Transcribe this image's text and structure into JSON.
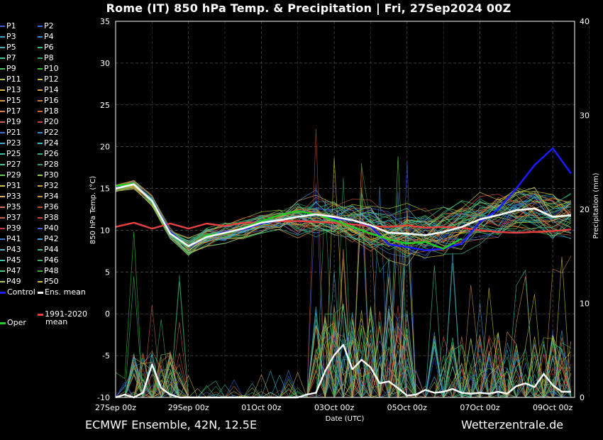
{
  "title": "Rome  (IT)  850 hPa Temp. & Precipitation | Fri, 27Sep2024 00Z",
  "footer": {
    "left": "ECMWF Ensemble, 42N, 12.5E",
    "right": "Wetterzentrale.de"
  },
  "legend": {
    "members": [
      "P1",
      "P2",
      "P3",
      "P4",
      "P5",
      "P6",
      "P7",
      "P8",
      "P9",
      "P10",
      "P11",
      "P12",
      "P13",
      "P14",
      "P15",
      "P16",
      "P17",
      "P18",
      "P19",
      "P20",
      "P21",
      "P22",
      "P23",
      "P24",
      "P25",
      "P26",
      "P27",
      "P28",
      "P29",
      "P30",
      "P31",
      "P32",
      "P33",
      "P34",
      "P35",
      "P36",
      "P37",
      "P38",
      "P39",
      "P40",
      "P41",
      "P42",
      "P43",
      "P44",
      "P45",
      "P46",
      "P47",
      "P48",
      "P49",
      "P50"
    ],
    "member_colors": [
      "#3b5bdb",
      "#2f6ee0",
      "#3aa0c8",
      "#2a8fd8",
      "#37b3b3",
      "#30c07a",
      "#3ec4a2",
      "#28a860",
      "#44c25a",
      "#2fbf2f",
      "#9cc93a",
      "#c9c23a",
      "#d6b84a",
      "#d7a040",
      "#d7944a",
      "#c97a3a",
      "#d9803a",
      "#c76a30",
      "#d06040",
      "#c04040",
      "#3a6ec8",
      "#3a8ad0",
      "#4aa0d8",
      "#3ab8c8",
      "#3ac0a0",
      "#30b080",
      "#3ac890",
      "#2aa070",
      "#60c850",
      "#a0c840",
      "#c8c040",
      "#d0a840",
      "#d8b050",
      "#c89040",
      "#d07040",
      "#b85030",
      "#c86050",
      "#d84040",
      "#c83838",
      "#4060d0",
      "#3a7ad0",
      "#3aa0e0",
      "#50b0c0",
      "#3ab890",
      "#40c0a8",
      "#38b070",
      "#50c870",
      "#40b040",
      "#a8c848",
      "#d0c040"
    ],
    "control": "Control",
    "ens_mean": "Ens. mean",
    "clim_line1": "1991-2020",
    "clim_line2": "mean",
    "oper": "Oper",
    "colors": {
      "control": "#1a1aff",
      "ens_mean": "#ffffff",
      "clim": "#e84040",
      "oper": "#22cc22"
    }
  },
  "chart_data": {
    "type": "line",
    "x_label": "Date (UTC)",
    "y_label_left": "850 hPa Temp. (°C)",
    "y_label_right": "Precipitation (mm)",
    "x_ticks": [
      "27Sep 00z",
      "29Sep 00z",
      "01Oct 00z",
      "03Oct 00z",
      "05Oct 00z",
      "07Oct 00z",
      "09Oct 00z"
    ],
    "x_range_days": [
      0,
      12.6
    ],
    "y_left_range": [
      -10,
      35
    ],
    "y_left_ticks": [
      -10,
      -5,
      0,
      5,
      10,
      15,
      20,
      25,
      30,
      35
    ],
    "y_right_range": [
      0,
      40
    ],
    "y_right_ticks": [
      0,
      10,
      20,
      30,
      40
    ],
    "grid": true,
    "legend_placement": "left, outside",
    "series": [
      {
        "name": "Control",
        "axis": "left",
        "color": "#1a1aff",
        "x": [
          0,
          0.5,
          1,
          1.5,
          2,
          2.5,
          3,
          3.5,
          4,
          4.5,
          5,
          5.5,
          6,
          6.5,
          7,
          7.5,
          8,
          8.5,
          9,
          9.5,
          10,
          10.5,
          11,
          11.5,
          12,
          12.5
        ],
        "y": [
          15.2,
          15.6,
          13.5,
          9.8,
          8.0,
          9.2,
          9.8,
          10.1,
          10.8,
          11.2,
          11.6,
          11.9,
          11.4,
          11.2,
          10.5,
          8.3,
          8.0,
          7.6,
          7.8,
          8.4,
          11.0,
          12.5,
          15.0,
          17.8,
          19.8,
          16.8
        ]
      },
      {
        "name": "Ens. mean",
        "axis": "left",
        "color": "#ffffff",
        "x": [
          0,
          0.5,
          1,
          1.5,
          2,
          2.5,
          3,
          3.5,
          4,
          4.5,
          5,
          5.5,
          6,
          6.5,
          7,
          7.5,
          8,
          8.5,
          9,
          9.5,
          10,
          10.5,
          11,
          11.5,
          12,
          12.5
        ],
        "y": [
          15.0,
          15.5,
          13.5,
          9.6,
          8.1,
          9.2,
          9.7,
          10.2,
          10.9,
          11.2,
          11.6,
          11.9,
          11.6,
          11.2,
          10.6,
          9.7,
          9.6,
          9.4,
          9.8,
          10.4,
          11.3,
          11.8,
          12.4,
          12.6,
          11.6,
          11.8
        ]
      },
      {
        "name": "Oper",
        "axis": "left",
        "color": "#22cc22",
        "x": [
          0,
          0.5,
          1,
          1.5,
          2,
          2.5,
          3,
          3.5,
          4,
          4.5,
          5,
          5.5,
          6,
          6.5,
          7,
          7.5,
          8,
          8.5,
          9,
          9.5
        ],
        "y": [
          15.3,
          15.6,
          13.4,
          9.5,
          8.0,
          9.4,
          9.6,
          10.3,
          11.1,
          11.8,
          12.3,
          11.9,
          11.2,
          10.4,
          9.6,
          8.9,
          8.4,
          8.6,
          7.8,
          9.0
        ]
      },
      {
        "name": "1991-2020 mean",
        "axis": "left",
        "color": "#e84040",
        "x": [
          0,
          0.5,
          1,
          1.5,
          2,
          2.5,
          3,
          3.5,
          4,
          4.5,
          5,
          5.5,
          6,
          6.5,
          7,
          7.5,
          8,
          8.5,
          9,
          9.5,
          10,
          10.5,
          11,
          11.5,
          12,
          12.5
        ],
        "y": [
          10.4,
          10.9,
          10.2,
          10.8,
          10.2,
          10.8,
          10.5,
          10.9,
          10.9,
          11.1,
          11.1,
          11.0,
          10.9,
          10.7,
          10.5,
          10.4,
          10.6,
          10.3,
          10.4,
          10.3,
          10.0,
          9.8,
          9.7,
          9.8,
          9.9,
          10.1
        ]
      },
      {
        "name": "Ens. mean precip",
        "axis": "right",
        "color": "#ffffff",
        "x": [
          0,
          0.25,
          0.5,
          0.75,
          1,
          1.25,
          1.5,
          1.75,
          2,
          3,
          4,
          5,
          5.25,
          5.5,
          5.75,
          6,
          6.25,
          6.5,
          6.75,
          7,
          7.25,
          7.5,
          7.75,
          8,
          8.25,
          8.5,
          8.75,
          9,
          9.25,
          9.5,
          9.75,
          10,
          10.25,
          10.5,
          10.75,
          11,
          11.25,
          11.5,
          11.75,
          12,
          12.25,
          12.5
        ],
        "y": [
          0,
          0.3,
          0,
          0.5,
          3.5,
          1.0,
          0.3,
          0,
          0,
          0,
          0,
          0,
          0.3,
          0.5,
          2.8,
          4.5,
          5.6,
          3.0,
          4.0,
          3.2,
          1.5,
          1.7,
          1.0,
          0.2,
          0.3,
          0.8,
          0.5,
          0.6,
          0.9,
          0.5,
          0.4,
          0.5,
          0.4,
          0.6,
          0.4,
          1.2,
          1.5,
          1.1,
          2.5,
          1.3,
          0.6,
          0.6
        ]
      }
    ]
  }
}
